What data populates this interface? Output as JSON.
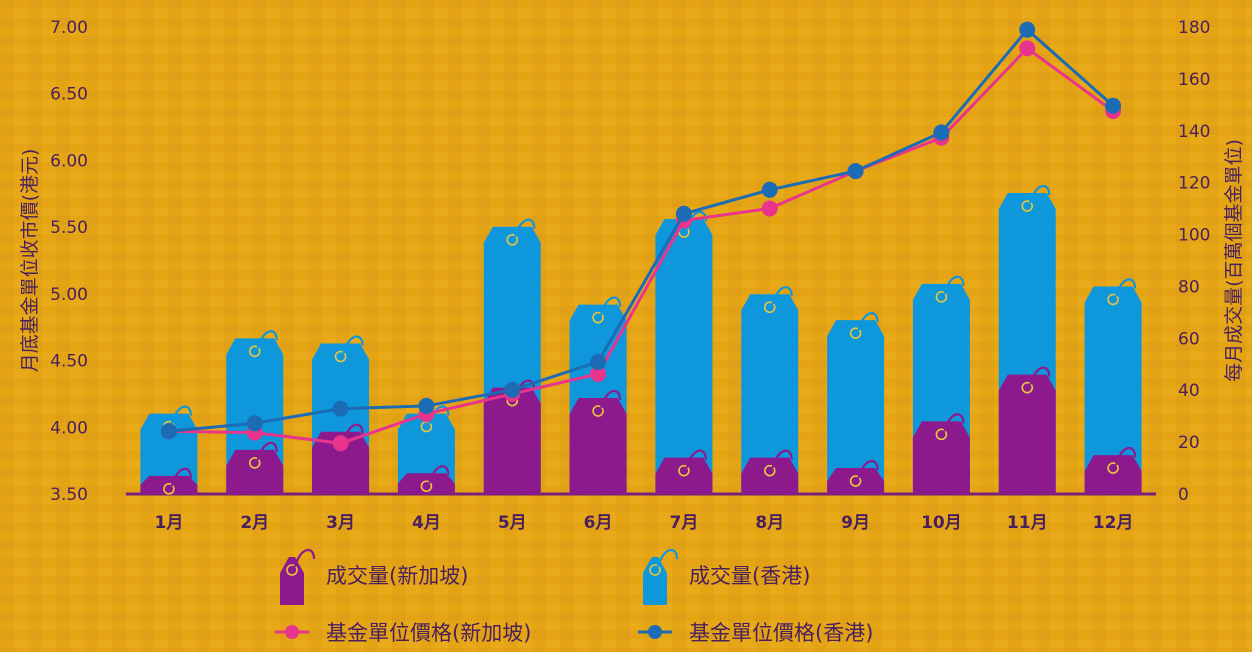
{
  "chart_data": {
    "type": "bar+line",
    "categories": [
      "1月",
      "2月",
      "3月",
      "4月",
      "5月",
      "6月",
      "7月",
      "8月",
      "9月",
      "10月",
      "11月",
      "12月"
    ],
    "ylabel_left": "月底基金單位收市價(港元)",
    "ylabel_right": "每月成交量(百萬個基金單位)",
    "ylim_left": [
      3.5,
      7.0
    ],
    "ylim_right": [
      0,
      180
    ],
    "yticks_left": [
      "3.50",
      "4.00",
      "4.50",
      "5.00",
      "5.50",
      "6.00",
      "6.50",
      "7.00"
    ],
    "yticks_right": [
      "0",
      "20",
      "40",
      "60",
      "80",
      "100",
      "120",
      "140",
      "160",
      "180"
    ],
    "bar_series": [
      {
        "name": "成交量(新加坡)",
        "color": "#8c1a8c",
        "values": [
          7,
          17,
          24,
          8,
          41,
          37,
          14,
          14,
          10,
          28,
          46,
          15
        ]
      },
      {
        "name": "成交量(香港)",
        "color": "#0f97dc",
        "values": [
          31,
          60,
          58,
          31,
          103,
          73,
          106,
          77,
          67,
          81,
          116,
          80
        ]
      }
    ],
    "line_series": [
      {
        "name": "基金單位價格(新加坡)",
        "color": "#e8348c",
        "values": [
          3.97,
          3.96,
          3.88,
          4.1,
          4.25,
          4.4,
          5.55,
          5.64,
          5.92,
          6.17,
          6.84,
          6.37
        ]
      },
      {
        "name": "基金單位價格(香港)",
        "color": "#1b6bb5",
        "values": [
          3.97,
          4.03,
          4.14,
          4.16,
          4.28,
          4.49,
          5.6,
          5.78,
          5.92,
          6.21,
          6.98,
          6.41
        ]
      }
    ],
    "grid": false,
    "legend_position": "bottom"
  }
}
